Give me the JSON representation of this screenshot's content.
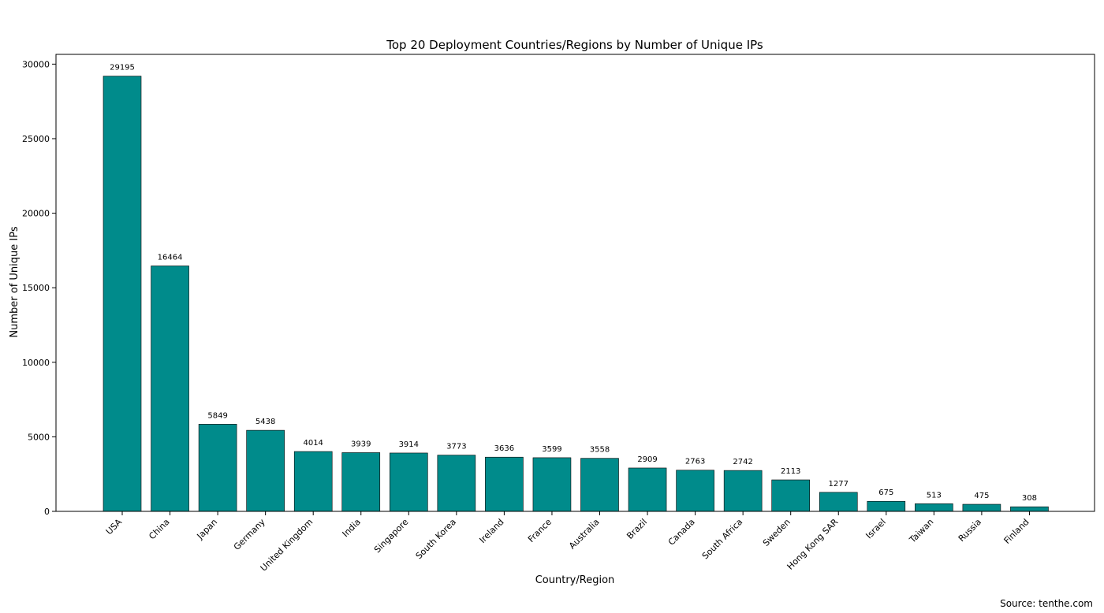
{
  "chart_data": {
    "type": "bar",
    "title": "Top 20 Deployment Countries/Regions by Number of Unique IPs",
    "xlabel": "Country/Region",
    "ylabel": "Number of Unique IPs",
    "categories": [
      "USA",
      "China",
      "Japan",
      "Germany",
      "United Kingdom",
      "India",
      "Singapore",
      "South Korea",
      "Ireland",
      "France",
      "Australia",
      "Brazil",
      "Canada",
      "South Africa",
      "Sweden",
      "Hong Kong SAR",
      "Israel",
      "Taiwan",
      "Russia",
      "Finland"
    ],
    "values": [
      29195,
      16464,
      5849,
      5438,
      4014,
      3939,
      3914,
      3773,
      3636,
      3599,
      3558,
      2909,
      2763,
      2742,
      2113,
      1277,
      675,
      513,
      475,
      308
    ],
    "value_labels": [
      "29195",
      "16464",
      "5849",
      "5438",
      "4014",
      "3939",
      "3914",
      "3773",
      "3636",
      "3599",
      "3558",
      "2909",
      "2763",
      "2742",
      "2113",
      "1277",
      "675",
      "513",
      "475",
      "308"
    ],
    "yticks": [
      0,
      5000,
      10000,
      15000,
      20000,
      25000,
      30000
    ],
    "ytick_labels": [
      "0",
      "5000",
      "10000",
      "15000",
      "20000",
      "25000",
      "30000"
    ],
    "ylim": [
      0,
      30654
    ],
    "grid": false,
    "legend": "none",
    "bar_color": "#008b8b"
  },
  "source": "Source: tenthe.com"
}
